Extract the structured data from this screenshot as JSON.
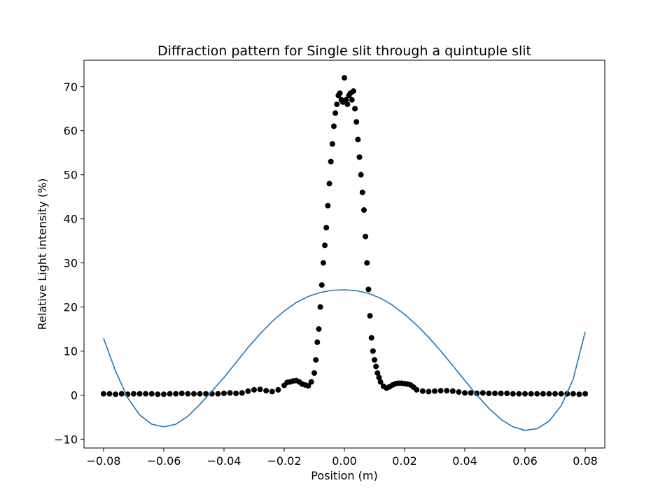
{
  "chart_data": {
    "type": "scatter",
    "title": "Diffraction pattern for Single slit through a quintuple slit",
    "xlabel": "Position (m)",
    "ylabel": "Relative Light intensity (%)",
    "xlim": [
      -0.0865,
      0.0865
    ],
    "ylim": [
      -12,
      76
    ],
    "xticks": [
      -0.08,
      -0.06,
      -0.04,
      -0.02,
      0.0,
      0.02,
      0.04,
      0.06,
      0.08
    ],
    "xtick_labels": [
      "−0.08",
      "−0.06",
      "−0.04",
      "−0.02",
      "0.00",
      "0.02",
      "0.04",
      "0.06",
      "0.08"
    ],
    "yticks": [
      -10,
      0,
      10,
      20,
      30,
      40,
      50,
      60,
      70
    ],
    "ytick_labels": [
      "−10",
      "0",
      "10",
      "20",
      "30",
      "40",
      "50",
      "60",
      "70"
    ],
    "grid": false,
    "series": [
      {
        "kind": "scatter",
        "color": "#000000",
        "x": [
          -0.08,
          -0.078,
          -0.076,
          -0.074,
          -0.072,
          -0.07,
          -0.068,
          -0.066,
          -0.064,
          -0.062,
          -0.06,
          -0.058,
          -0.056,
          -0.054,
          -0.052,
          -0.05,
          -0.048,
          -0.046,
          -0.044,
          -0.042,
          -0.04,
          -0.038,
          -0.036,
          -0.034,
          -0.032,
          -0.03,
          -0.028,
          -0.026,
          -0.024,
          -0.022,
          -0.02,
          -0.019,
          -0.018,
          -0.017,
          -0.016,
          -0.015,
          -0.014,
          -0.013,
          -0.012,
          -0.011,
          -0.01,
          -0.0095,
          -0.009,
          -0.0085,
          -0.008,
          -0.0075,
          -0.007,
          -0.0065,
          -0.006,
          -0.0055,
          -0.005,
          -0.0045,
          -0.004,
          -0.0035,
          -0.003,
          -0.0025,
          -0.002,
          -0.0015,
          -0.001,
          -0.0005,
          0.0,
          0.0005,
          0.001,
          0.0015,
          0.002,
          0.0025,
          0.003,
          0.0035,
          0.004,
          0.0045,
          0.005,
          0.0055,
          0.006,
          0.0065,
          0.007,
          0.0075,
          0.008,
          0.0085,
          0.009,
          0.0095,
          0.01,
          0.0105,
          0.011,
          0.0115,
          0.012,
          0.013,
          0.014,
          0.015,
          0.016,
          0.017,
          0.018,
          0.019,
          0.02,
          0.021,
          0.022,
          0.023,
          0.024,
          0.026,
          0.028,
          0.03,
          0.032,
          0.034,
          0.036,
          0.038,
          0.04,
          0.042,
          0.044,
          0.046,
          0.048,
          0.05,
          0.052,
          0.054,
          0.056,
          0.058,
          0.06,
          0.062,
          0.064,
          0.066,
          0.068,
          0.07,
          0.072,
          0.074,
          0.076,
          0.078,
          0.08
        ],
        "y": [
          0.3,
          0.3,
          0.2,
          0.3,
          0.2,
          0.3,
          0.3,
          0.3,
          0.3,
          0.2,
          0.2,
          0.3,
          0.3,
          0.4,
          0.3,
          0.3,
          0.3,
          0.3,
          0.3,
          0.3,
          0.4,
          0.5,
          0.4,
          0.5,
          0.9,
          1.2,
          1.3,
          1.0,
          0.8,
          1.2,
          2.2,
          2.9,
          3.0,
          3.2,
          3.3,
          3.0,
          2.5,
          2.3,
          2.1,
          3.0,
          5.0,
          8.0,
          12.0,
          15.0,
          20.0,
          25.0,
          30.0,
          34.0,
          38.0,
          43.0,
          48.0,
          53.0,
          57.0,
          61.0,
          64.0,
          66.0,
          68.0,
          68.5,
          67.0,
          66.5,
          72.0,
          67.0,
          66.0,
          68.0,
          68.5,
          67.0,
          69.0,
          65.0,
          62.0,
          58.0,
          54.0,
          50.0,
          46.0,
          42.0,
          36.0,
          30.0,
          24.0,
          18.0,
          13.0,
          10.0,
          8.0,
          6.5,
          5.0,
          4.0,
          3.0,
          2.0,
          1.6,
          1.9,
          2.3,
          2.6,
          2.7,
          2.7,
          2.6,
          2.5,
          2.3,
          1.8,
          1.2,
          0.9,
          0.8,
          0.9,
          1.0,
          1.0,
          0.9,
          0.7,
          0.5,
          0.5,
          0.4,
          0.5,
          0.4,
          0.4,
          0.4,
          0.4,
          0.3,
          0.3,
          0.3,
          0.3,
          0.3,
          0.3,
          0.3,
          0.3,
          0.3,
          0.3,
          0.3,
          0.2,
          0.3
        ]
      },
      {
        "kind": "line",
        "color": "#1f77b4",
        "x": [
          -0.08,
          -0.076,
          -0.072,
          -0.068,
          -0.064,
          -0.06,
          -0.056,
          -0.052,
          -0.048,
          -0.044,
          -0.04,
          -0.036,
          -0.032,
          -0.028,
          -0.024,
          -0.02,
          -0.016,
          -0.012,
          -0.008,
          -0.004,
          0.0,
          0.004,
          0.008,
          0.012,
          0.016,
          0.02,
          0.024,
          0.028,
          0.032,
          0.036,
          0.04,
          0.044,
          0.048,
          0.052,
          0.056,
          0.06,
          0.064,
          0.068,
          0.072,
          0.076,
          0.08
        ],
        "y": [
          12.9,
          5.4,
          -0.6,
          -4.5,
          -6.6,
          -7.2,
          -6.6,
          -4.8,
          -2.1,
          0.9,
          4.0,
          7.4,
          10.8,
          13.9,
          16.7,
          19.1,
          21.0,
          22.4,
          23.3,
          23.8,
          23.9,
          23.7,
          23.1,
          22.0,
          20.4,
          18.3,
          15.9,
          13.1,
          10.0,
          6.7,
          3.3,
          0.0,
          -3.0,
          -5.5,
          -7.2,
          -8.0,
          -7.6,
          -5.9,
          -2.4,
          3.6,
          14.4
        ]
      }
    ]
  }
}
